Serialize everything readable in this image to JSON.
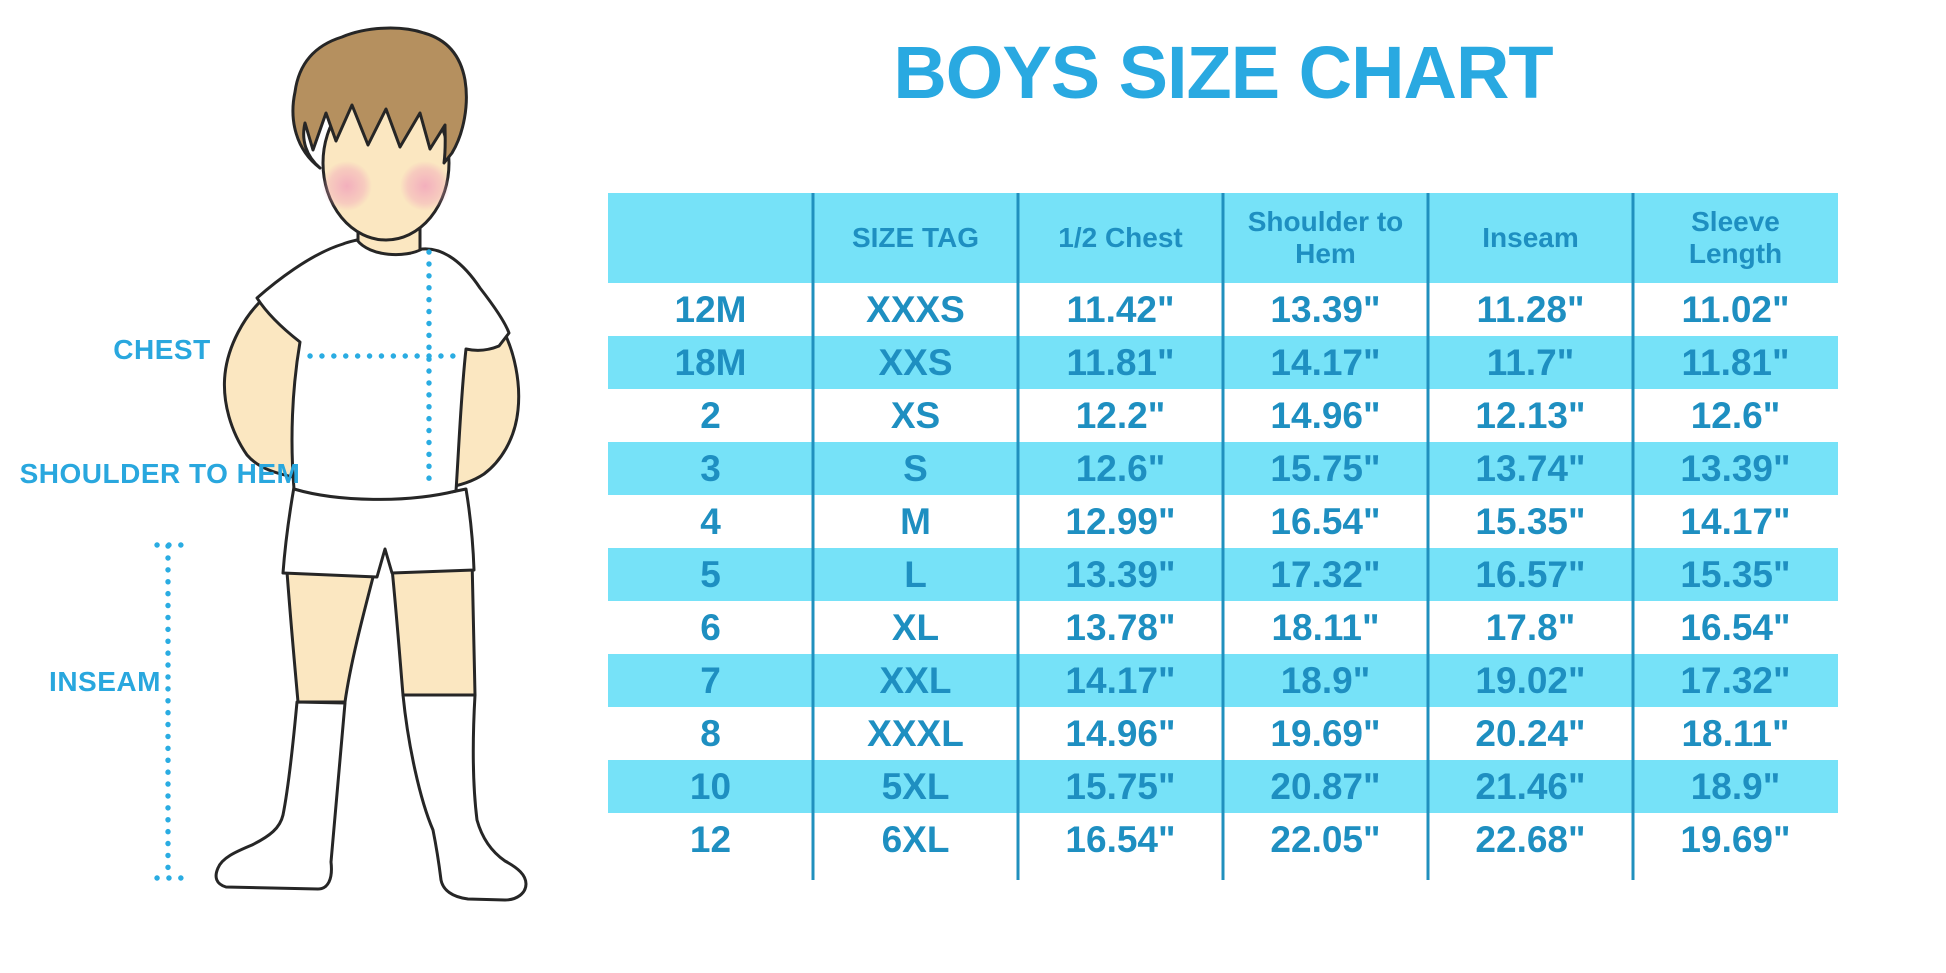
{
  "title": "BOYS SIZE CHART",
  "figure": {
    "chest_label": "CHEST",
    "shoulder_to_hem_label": "SHOULDER TO HEM",
    "inseam_label": "INSEAM"
  },
  "chart_data": {
    "type": "table",
    "title": "BOYS SIZE CHART",
    "columns": [
      "",
      "SIZE TAG",
      "1/2 Chest",
      "Shoulder to Hem",
      "Inseam",
      "Sleeve Length"
    ],
    "rows": [
      [
        "12M",
        "XXXS",
        "11.42\"",
        "13.39\"",
        "11.28\"",
        "11.02\""
      ],
      [
        "18M",
        "XXS",
        "11.81\"",
        "14.17\"",
        "11.7\"",
        "11.81\""
      ],
      [
        "2",
        "XS",
        "12.2\"",
        "14.96\"",
        "12.13\"",
        "12.6\""
      ],
      [
        "3",
        "S",
        "12.6\"",
        "15.75\"",
        "13.74\"",
        "13.39\""
      ],
      [
        "4",
        "M",
        "12.99\"",
        "16.54\"",
        "15.35\"",
        "14.17\""
      ],
      [
        "5",
        "L",
        "13.39\"",
        "17.32\"",
        "16.57\"",
        "15.35\""
      ],
      [
        "6",
        "XL",
        "13.78\"",
        "18.11\"",
        "17.8\"",
        "16.54\""
      ],
      [
        "7",
        "XXL",
        "14.17\"",
        "18.9\"",
        "19.02\"",
        "17.32\""
      ],
      [
        "8",
        "XXXL",
        "14.96\"",
        "19.69\"",
        "20.24\"",
        "18.11\""
      ],
      [
        "10",
        "5XL",
        "15.75\"",
        "20.87\"",
        "21.46\"",
        "18.9\""
      ],
      [
        "12",
        "6XL",
        "16.54\"",
        "22.05\"",
        "22.68\"",
        "19.69\""
      ]
    ],
    "zebra_pattern": "header cyan, then rows alternate white/cyan starting white",
    "legend_position": "none",
    "grid": "vertical column dividers only"
  },
  "colors": {
    "row_cyan": "#76E2F8",
    "table_text_blue": "#1E8FC1",
    "divider_blue": "#2090BE",
    "title_blue": "#29A9E1",
    "label_blue": "#29A7DE",
    "dot_blue": "#2AACE2",
    "skin": "#FBE7C1",
    "hair": "#B5905F",
    "blush": "#F2A9BC",
    "outline": "#262626"
  }
}
